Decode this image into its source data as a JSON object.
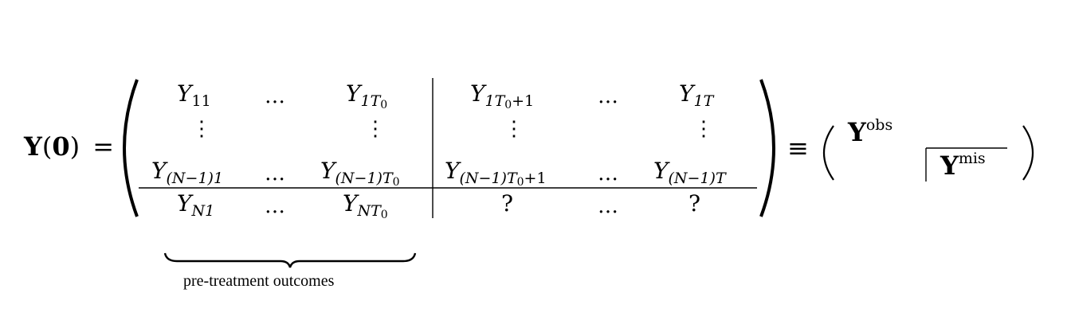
{
  "equation": {
    "lhs": {
      "symbol": "Y",
      "arg": "0",
      "equals": "="
    },
    "equiv": "≡",
    "matrix": {
      "row1": {
        "c1": {
          "base": "Y",
          "sub": "11"
        },
        "c2": "…",
        "c3": {
          "base": "Y",
          "sub": "1T",
          "subsub": "0"
        },
        "c4": {
          "base": "Y",
          "sub": "1T",
          "subsub": "0",
          "tail": "+1"
        },
        "c5": "…",
        "c6": {
          "base": "Y",
          "sub": "1T"
        }
      },
      "row2": {
        "vdots": "⋮"
      },
      "row3": {
        "c1": {
          "base": "Y",
          "sub": "(N−1)1"
        },
        "c2": "…",
        "c3": {
          "base": "Y",
          "sub": "(N−1)T",
          "subsub": "0"
        },
        "c4": {
          "base": "Y",
          "sub": "(N−1)T",
          "subsub": "0",
          "tail": "+1"
        },
        "c5": "…",
        "c6": {
          "base": "Y",
          "sub": "(N−1)T"
        }
      },
      "row4": {
        "c1": {
          "base": "Y",
          "sub": "N1"
        },
        "c2": "…",
        "c3": {
          "base": "Y",
          "sub": "NT",
          "subsub": "0"
        },
        "c4": "?",
        "c5": "…",
        "c6": "?"
      }
    },
    "block": {
      "obs": {
        "base": "Y",
        "sup": "obs"
      },
      "mis": {
        "base": "Y",
        "sup": "mis"
      }
    },
    "underbrace_label": "pre-treatment outcomes"
  }
}
